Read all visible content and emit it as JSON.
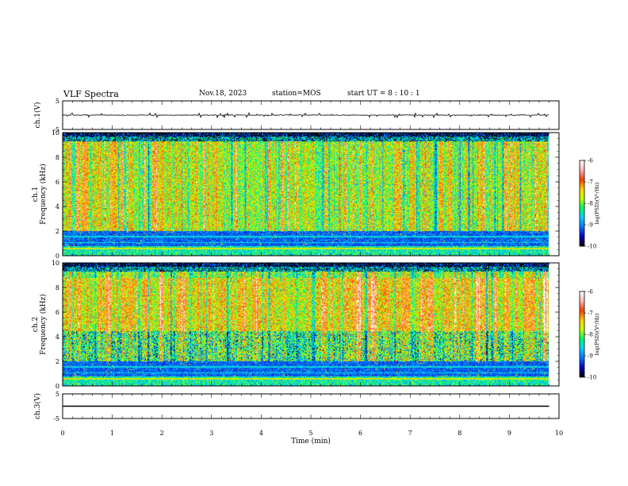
{
  "header": {
    "title": "VLF Spectra",
    "date": "Nov.18, 2023",
    "station": "station=MOS",
    "start": "start  UT =   8 : 10 : 1"
  },
  "chart_data": [
    {
      "id": "ch1-voltage",
      "type": "line",
      "ylabel": "ch.1(V)",
      "ylim": [
        -5,
        5
      ],
      "yticks": [
        "5",
        "-5"
      ],
      "xlim": [
        0,
        10
      ],
      "level": 0,
      "grid": false
    },
    {
      "id": "ch1-spectrogram",
      "type": "heatmap",
      "ylabel_line1": "ch.1",
      "ylabel_line2": "Frequency (kHz)",
      "ylim": [
        0,
        10
      ],
      "yticks": [
        "0",
        "2",
        "4",
        "6",
        "8",
        "10"
      ],
      "xlim": [
        0,
        10
      ],
      "data_end_min": 9.8,
      "colorbar": {
        "label": "log(PSD)(V²/Hz)",
        "ticks": [
          "-6",
          "-7",
          "-8",
          "-9",
          "-10"
        ],
        "range": [
          -10,
          -6
        ]
      }
    },
    {
      "id": "ch2-spectrogram",
      "type": "heatmap",
      "ylabel_line1": "ch.2",
      "ylabel_line2": "Frequency (kHz)",
      "ylim": [
        0,
        10
      ],
      "yticks": [
        "0",
        "2",
        "4",
        "6",
        "8",
        "10"
      ],
      "xlim": [
        0,
        10
      ],
      "data_end_min": 9.8,
      "colorbar": {
        "label": "log(PSD)(V²/Hz)",
        "ticks": [
          "-6",
          "-7",
          "-8",
          "-9",
          "-10"
        ],
        "range": [
          -10,
          -6
        ]
      }
    },
    {
      "id": "ch3-voltage",
      "type": "line",
      "ylabel": "ch.3(V)",
      "ylim": [
        -5,
        5
      ],
      "yticks": [
        "5",
        "-5"
      ],
      "xlim": [
        0,
        10
      ],
      "level": 0,
      "grid": false
    }
  ],
  "xaxis": {
    "label": "Time (min)",
    "ticks": [
      "0",
      "1",
      "2",
      "3",
      "4",
      "5",
      "6",
      "7",
      "8",
      "9",
      "10"
    ]
  },
  "colors": {
    "colormap": [
      "#000000",
      "#0000c8",
      "#0078ff",
      "#00d2ff",
      "#00ff64",
      "#c8ff00",
      "#ffd200",
      "#ff3c00",
      "#ffb4b4",
      "#ffffff"
    ]
  }
}
